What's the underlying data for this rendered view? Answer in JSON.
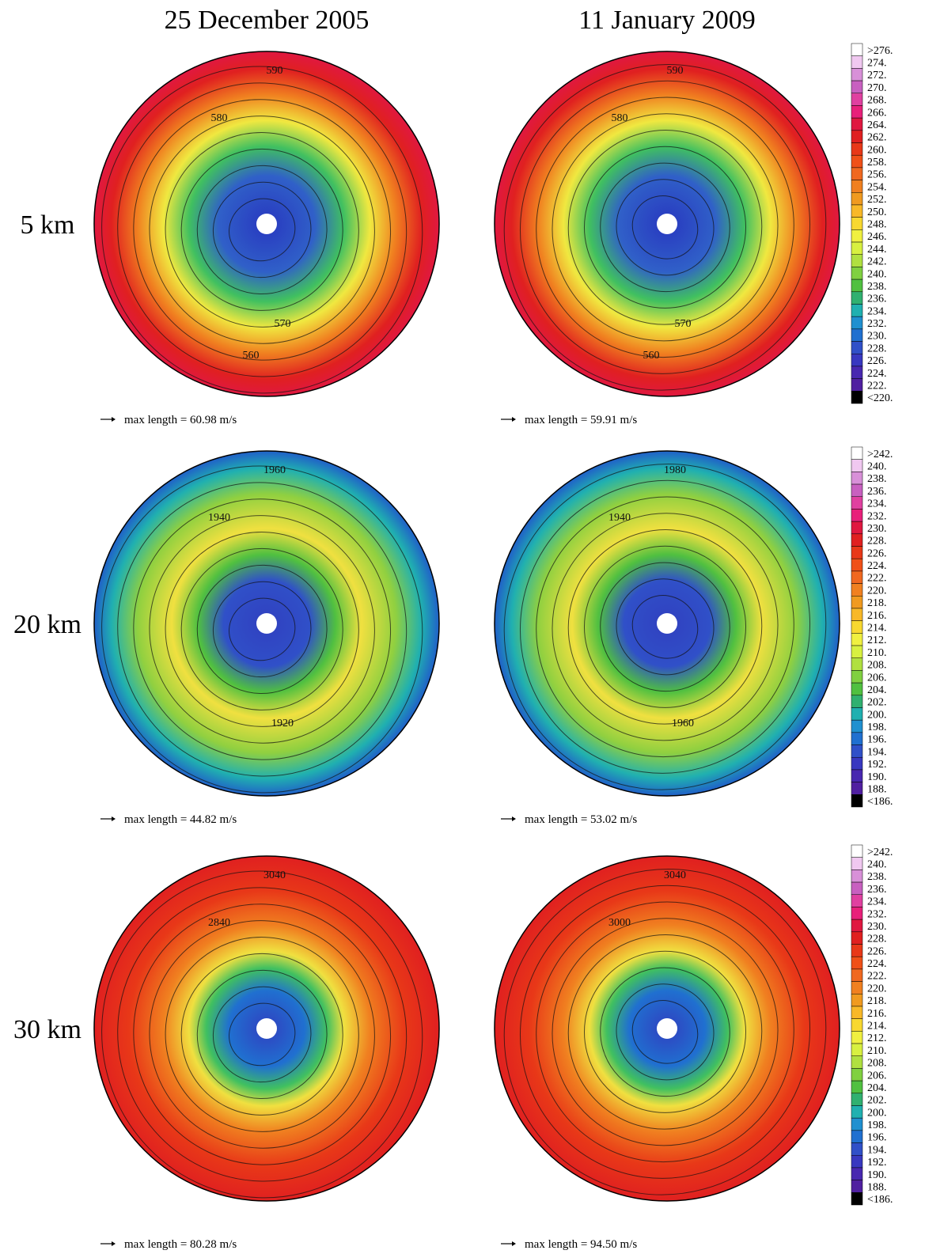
{
  "column_titles": [
    "25 December 2005",
    "11 January 2009"
  ],
  "row_labels": [
    "5 km",
    "20 km",
    "30 km"
  ],
  "panels": [
    {
      "contour_labels": [
        "590",
        "580",
        "570",
        "560"
      ],
      "caption": "max length = 60.98 m/s"
    },
    {
      "contour_labels": [
        "590",
        "580",
        "570",
        "560"
      ],
      "caption": "max length = 59.91 m/s"
    },
    {
      "contour_labels": [
        "1960",
        "1940",
        "1920"
      ],
      "caption": "max length = 44.82 m/s"
    },
    {
      "contour_labels": [
        "1980",
        "1940",
        "1960"
      ],
      "caption": "max length = 53.02 m/s"
    },
    {
      "contour_labels": [
        "3040",
        "2840"
      ],
      "caption": "max length = 80.28 m/s"
    },
    {
      "contour_labels": [
        "3040",
        "3000"
      ],
      "caption": "max length = 94.50 m/s"
    }
  ],
  "colormap": [
    "#ffffff",
    "#f0c8f0",
    "#d890d8",
    "#c860c0",
    "#e040a0",
    "#e8207a",
    "#e01840",
    "#e02020",
    "#e83818",
    "#f05018",
    "#f06820",
    "#f08020",
    "#f09a20",
    "#f8b828",
    "#f8d830",
    "#f0f040",
    "#d8f040",
    "#b0e040",
    "#80d040",
    "#50c040",
    "#30b070",
    "#20b0b0",
    "#2090d0",
    "#2070d0",
    "#3050c8",
    "#3838c0",
    "#4828b0",
    "#5020a0",
    "#000000"
  ],
  "colorbars": [
    {
      "labels": [
        ">276.",
        "274.",
        "272.",
        "270.",
        "268.",
        "266.",
        "264.",
        "262.",
        "260.",
        "258.",
        "256.",
        "254.",
        "252.",
        "250.",
        "248.",
        "246.",
        "244.",
        "242.",
        "240.",
        "238.",
        "236.",
        "234.",
        "232.",
        "230.",
        "228.",
        "226.",
        "224.",
        "222.",
        "<220."
      ]
    },
    {
      "labels": [
        ">242.",
        "240.",
        "238.",
        "236.",
        "234.",
        "232.",
        "230.",
        "228.",
        "226.",
        "224.",
        "222.",
        "220.",
        "218.",
        "216.",
        "214.",
        "212.",
        "210.",
        "208.",
        "206.",
        "204.",
        "202.",
        "200.",
        "198.",
        "196.",
        "194.",
        "192.",
        "190.",
        "188.",
        "<186."
      ]
    },
    {
      "labels": [
        ">242.",
        "240.",
        "238.",
        "236.",
        "234.",
        "232.",
        "230.",
        "228.",
        "226.",
        "224.",
        "222.",
        "220.",
        "218.",
        "216.",
        "214.",
        "212.",
        "210.",
        "208.",
        "206.",
        "204.",
        "202.",
        "200.",
        "198.",
        "196.",
        "194.",
        "192.",
        "190.",
        "188.",
        "<186."
      ]
    }
  ]
}
